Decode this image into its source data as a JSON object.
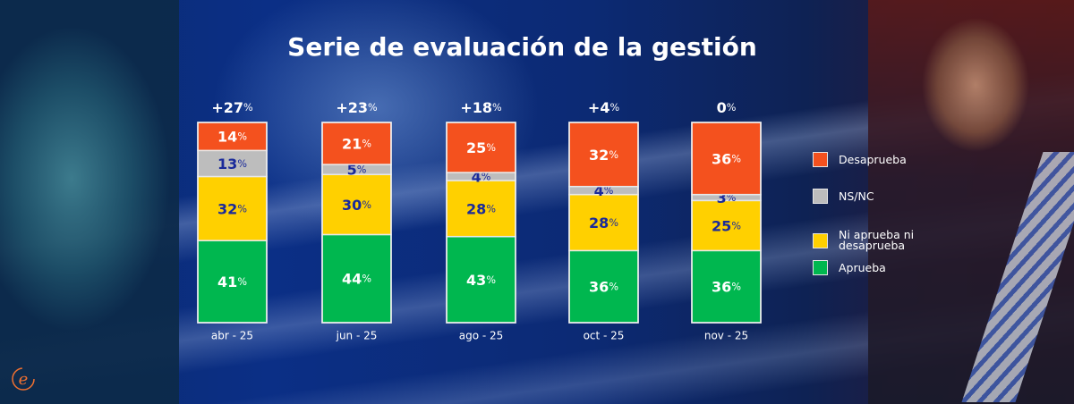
{
  "title": "Serie de evaluación de la gestión",
  "logo": "e-logo-icon",
  "colors": {
    "Desaprueba": "#f4511e",
    "NS/NC": "#bdbdbd",
    "Ni aprueba ni desaprueba": "#ffd000",
    "Aprueba": "#00b74f",
    "label_dark": "#1a2a9a",
    "label_light": "#ffffff"
  },
  "legend": [
    {
      "label": "Desaprueba",
      "color": "#f4511e"
    },
    {
      "label": "NS/NC",
      "color": "#bdbdbd"
    },
    {
      "label": "Ni aprueba ni desaprueba",
      "color": "#ffd000"
    },
    {
      "label": "Aprueba",
      "color": "#00b74f"
    }
  ],
  "chart_data": {
    "type": "bar",
    "stacked": true,
    "title": "Serie de evaluación de la gestión",
    "xlabel": "",
    "ylabel": "",
    "ylim": [
      0,
      100
    ],
    "grid": false,
    "legend_position": "right",
    "categories": [
      "abr - 25",
      "jun - 25",
      "ago - 25",
      "oct - 25",
      "nov - 25"
    ],
    "net_labels": [
      "+27%",
      "+23%",
      "+18%",
      "+4%",
      "0%"
    ],
    "series": [
      {
        "name": "Aprueba",
        "values": [
          41,
          44,
          43,
          36,
          36
        ]
      },
      {
        "name": "Ni aprueba ni desaprueba",
        "values": [
          32,
          30,
          28,
          28,
          25
        ]
      },
      {
        "name": "NS/NC",
        "values": [
          13,
          5,
          4,
          4,
          3
        ]
      },
      {
        "name": "Desaprueba",
        "values": [
          14,
          21,
          25,
          32,
          36
        ]
      }
    ]
  }
}
